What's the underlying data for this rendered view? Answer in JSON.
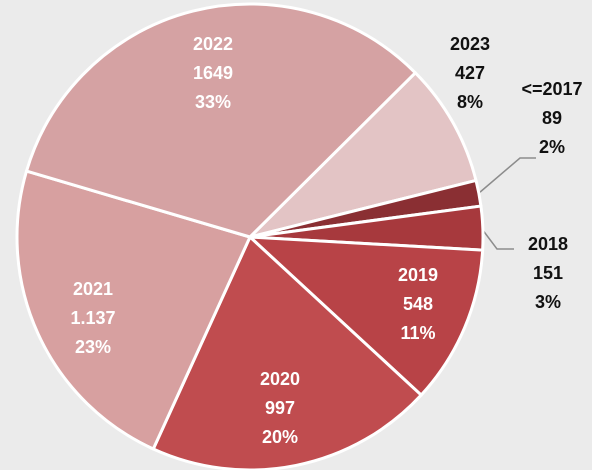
{
  "chart_data": {
    "type": "pie",
    "categories": [
      "2023",
      "<=2017",
      "2018",
      "2019",
      "2020",
      "2021",
      "2022"
    ],
    "values": [
      427,
      89,
      151,
      548,
      997,
      1137,
      1649
    ],
    "value_labels": [
      "427",
      "89",
      "151",
      "548",
      "997",
      "1.137",
      "1649"
    ],
    "percent_values": [
      8,
      2,
      3,
      11,
      20,
      23,
      33
    ],
    "percent_labels": [
      "8%",
      "2%",
      "3%",
      "11%",
      "20%",
      "23%",
      "33%"
    ],
    "colors": [
      "#e3c4c5",
      "#8a2f33",
      "#a7393d",
      "#b84347",
      "#c04c4f",
      "#d7a0a0",
      "#d5a2a3"
    ]
  }
}
